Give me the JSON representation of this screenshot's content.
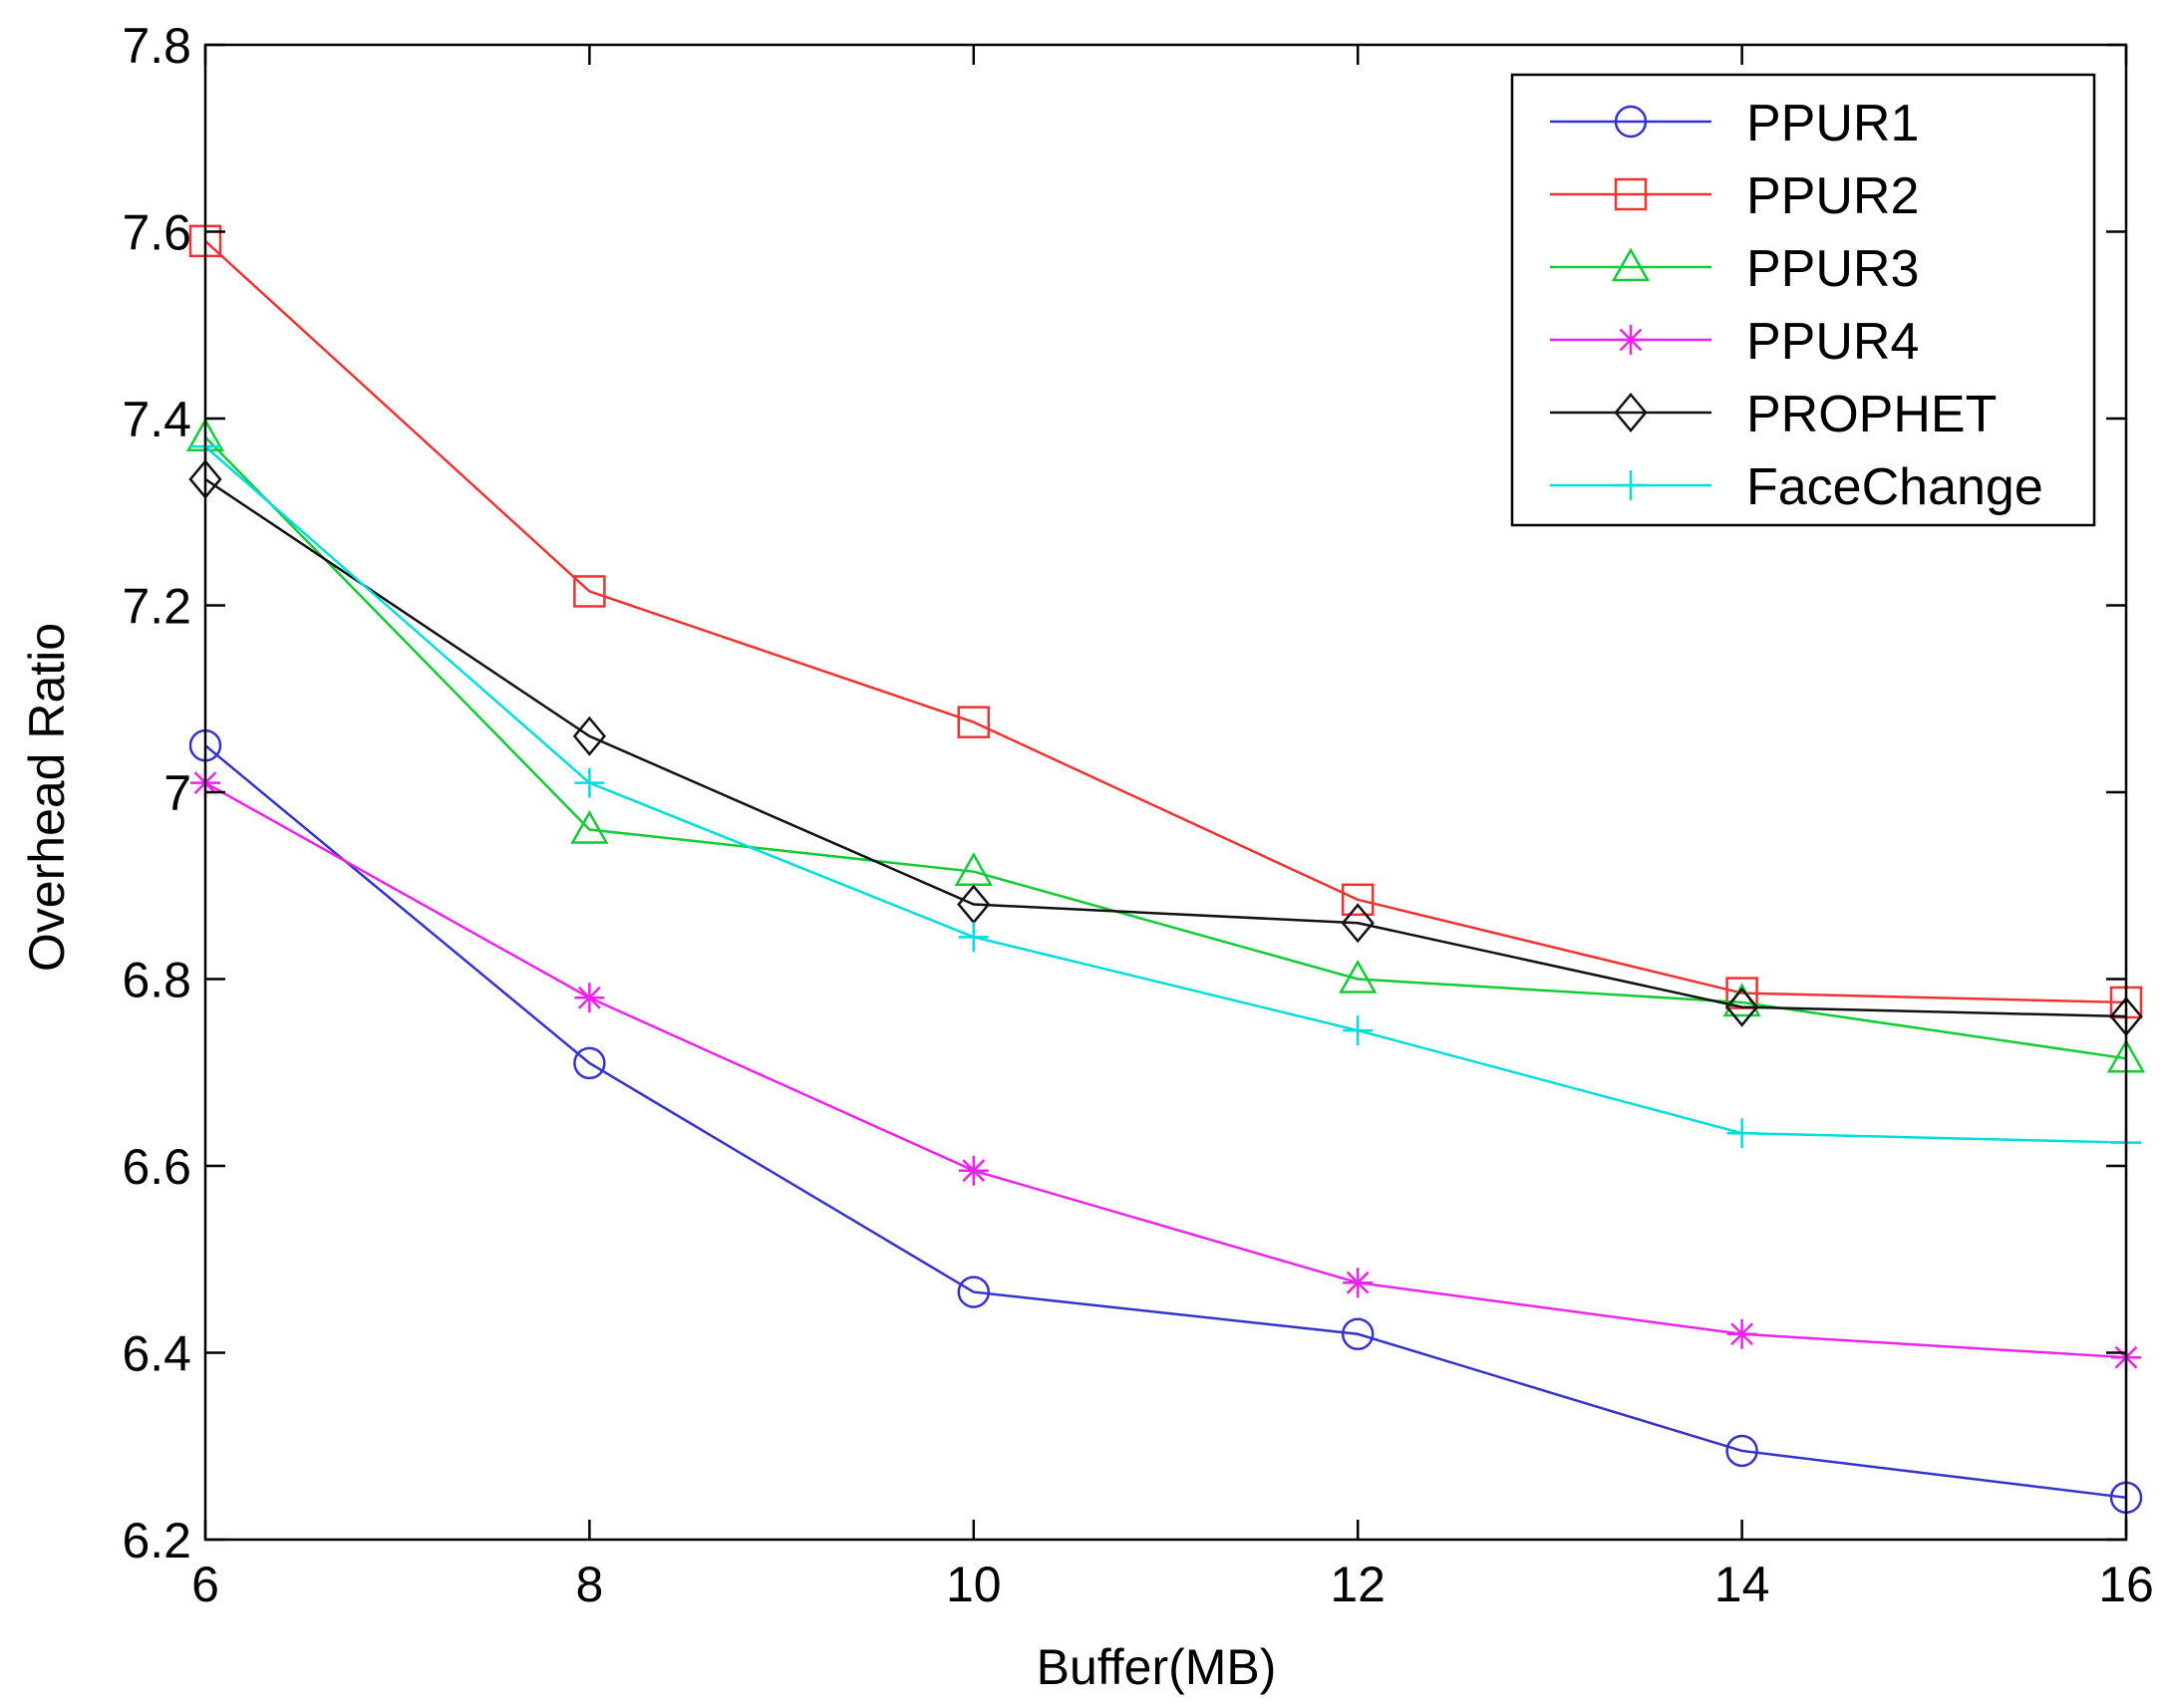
{
  "chart_data": {
    "type": "line",
    "title": "",
    "xlabel": "Buffer(MB)",
    "ylabel": "Overhead Ratio",
    "x": [
      6,
      8,
      10,
      12,
      14,
      16
    ],
    "xlim": [
      6,
      16
    ],
    "ylim": [
      6.2,
      7.8
    ],
    "xticks": [
      6,
      8,
      10,
      12,
      14,
      16
    ],
    "xtick_labels": [
      "6",
      "8",
      "10",
      "12",
      "14",
      "16"
    ],
    "yticks": [
      6.2,
      6.4,
      6.6,
      6.8,
      7.0,
      7.2,
      7.4,
      7.6,
      7.8
    ],
    "ytick_labels": [
      "6.2",
      "6.4",
      "6.6",
      "6.8",
      "7",
      "7.2",
      "7.4",
      "7.6",
      "7.8"
    ],
    "grid": false,
    "legend_position": "top-right",
    "series": [
      {
        "name": "PPUR1",
        "color": "#3333cc",
        "marker": "circle",
        "values": [
          7.05,
          6.71,
          6.465,
          6.42,
          6.295,
          6.245
        ]
      },
      {
        "name": "PPUR2",
        "color": "#ee3333",
        "marker": "square",
        "values": [
          7.59,
          7.215,
          7.075,
          6.885,
          6.785,
          6.775
        ]
      },
      {
        "name": "PPUR3",
        "color": "#11cc33",
        "marker": "triangle",
        "values": [
          7.38,
          6.96,
          6.915,
          6.8,
          6.775,
          6.715
        ]
      },
      {
        "name": "PPUR4",
        "color": "#ee22ee",
        "marker": "asterisk",
        "values": [
          7.01,
          6.78,
          6.595,
          6.475,
          6.42,
          6.395
        ]
      },
      {
        "name": "PROPHET",
        "color": "#111111",
        "marker": "diamond",
        "values": [
          7.335,
          7.06,
          6.88,
          6.86,
          6.77,
          6.76
        ]
      },
      {
        "name": "FaceChange",
        "color": "#00dddd",
        "marker": "plus",
        "values": [
          7.37,
          7.01,
          6.845,
          6.745,
          6.635,
          6.625
        ]
      }
    ]
  }
}
